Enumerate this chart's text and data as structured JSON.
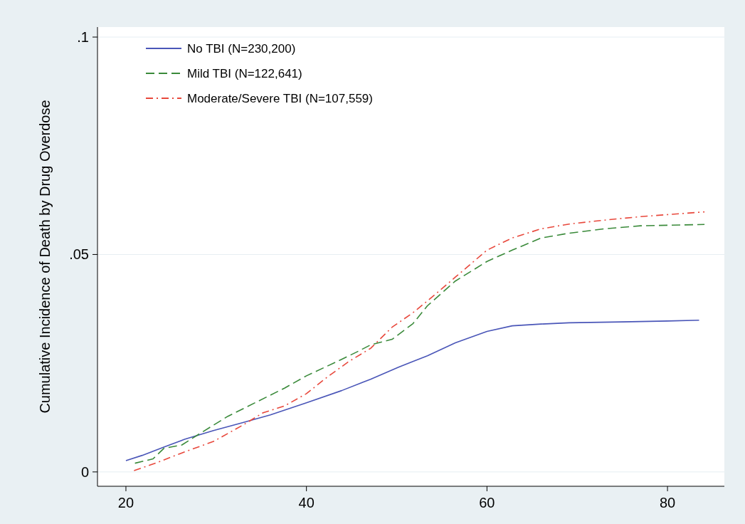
{
  "chart_data": {
    "type": "line",
    "ylabel": "Cumulative Incidence of Death by Drug Overdose",
    "xlim": [
      16.85,
      86.3
    ],
    "ylim": [
      -0.0033,
      0.1023
    ],
    "xticks": [
      20,
      40,
      60,
      80
    ],
    "yticks": [
      0,
      {
        "value": 0.05,
        "label": ".05"
      },
      {
        "value": 0.1,
        "label": ".1"
      }
    ],
    "grid": "y",
    "legend": "top left",
    "series": [
      {
        "name": "No TBI (N=230,200)",
        "color": "#4a56b8",
        "line_style": "solid",
        "x": [
          20,
          21.8,
          24.2,
          26.5,
          29.7,
          32.9,
          36,
          40,
          43.9,
          47.1,
          50.2,
          53.4,
          56.5,
          60,
          62.8,
          66,
          69.1,
          75,
          80,
          83.5
        ],
        "values": [
          0.0026,
          0.0038,
          0.0057,
          0.0075,
          0.0095,
          0.0113,
          0.0131,
          0.0159,
          0.0187,
          0.0213,
          0.0241,
          0.0267,
          0.0297,
          0.0323,
          0.0336,
          0.034,
          0.0343,
          0.0345,
          0.0347,
          0.0349
        ]
      },
      {
        "name": "Mild TBI (N=122,641)",
        "color": "#3a8a3a",
        "line_style": "dashed",
        "x": [
          21,
          23,
          24.2,
          26.2,
          28.1,
          31.3,
          34.4,
          37.6,
          40,
          43.1,
          45.5,
          47.1,
          49.5,
          51.8,
          53.4,
          56.5,
          60,
          62.8,
          66,
          69.1,
          73,
          77,
          84.1
        ],
        "values": [
          0.002,
          0.003,
          0.0054,
          0.0062,
          0.0087,
          0.0128,
          0.016,
          0.0193,
          0.0221,
          0.0251,
          0.0275,
          0.0292,
          0.0305,
          0.0341,
          0.0382,
          0.0439,
          0.0484,
          0.051,
          0.0538,
          0.0549,
          0.0559,
          0.0566,
          0.0569
        ]
      },
      {
        "name": "Moderate/Severe TBI (N=107,559)",
        "color": "#e8483c",
        "line_style": "dashdot",
        "x": [
          20.9,
          23.4,
          26.5,
          29.7,
          32.9,
          35.2,
          37.6,
          40,
          42.3,
          44.7,
          47.1,
          49.5,
          51.8,
          54.2,
          56.5,
          60,
          62.8,
          66,
          69.1,
          73,
          77,
          84.1
        ],
        "values": [
          0.0003,
          0.0021,
          0.0046,
          0.007,
          0.0107,
          0.0136,
          0.0152,
          0.018,
          0.0218,
          0.0254,
          0.0284,
          0.0333,
          0.0366,
          0.0407,
          0.0448,
          0.051,
          0.0538,
          0.0559,
          0.057,
          0.0579,
          0.0587,
          0.0598
        ]
      }
    ]
  }
}
